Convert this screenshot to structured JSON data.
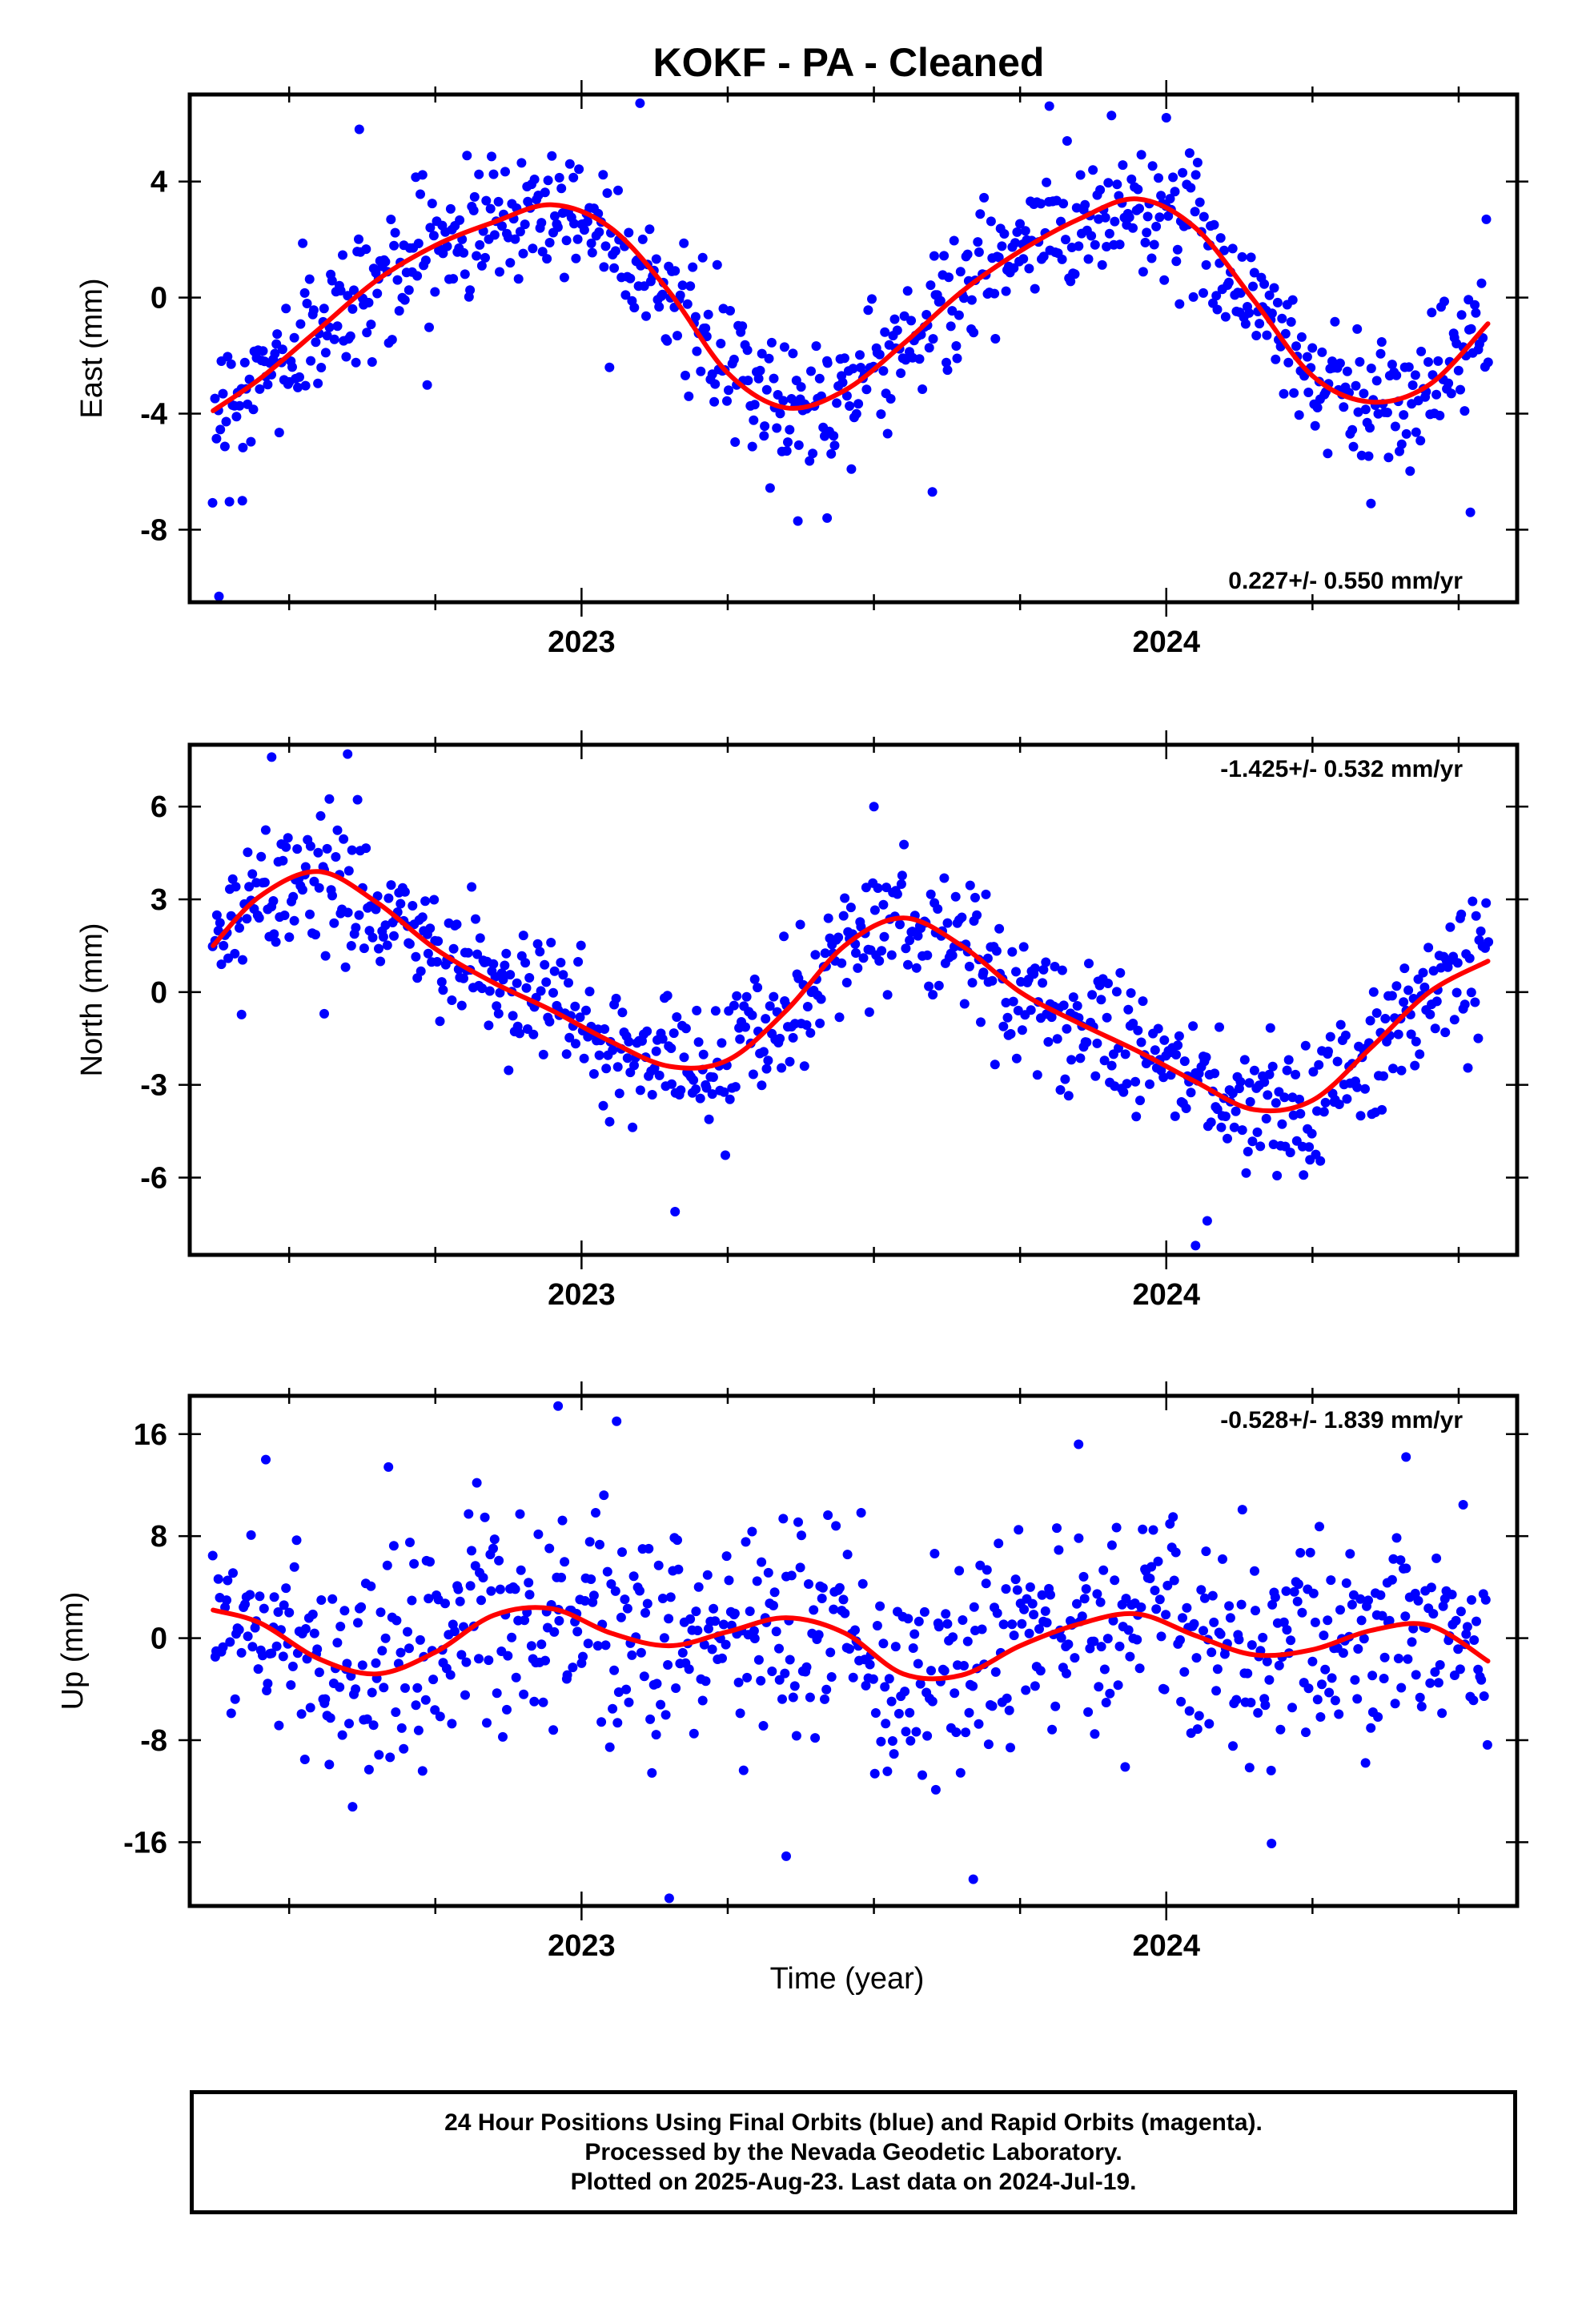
{
  "title": "KOKF  - PA - Cleaned",
  "xlabel": "Time (year)",
  "footer": {
    "line1": "24 Hour Positions Using Final Orbits (blue) and Rapid Orbits (magenta).",
    "line2": "Processed by the Nevada Geodetic Laboratory.",
    "line3": "Plotted on 2025-Aug-23. Last data on 2024-Jul-19."
  },
  "colors": {
    "final_orbits": "#0000ff",
    "rapid_orbits": "#ff00ff",
    "model": "#ff0000"
  },
  "chart_data": [
    {
      "type": "scatter",
      "ylabel": "East (mm)",
      "rate": "0.227+/- 0.550 mm/yr",
      "rate_position": "bottom-right",
      "xlim": [
        2022.33,
        2024.6
      ],
      "ylim": [
        -10.5,
        7.0
      ],
      "xticks": [
        2023,
        2024
      ],
      "xtick_labels": [
        "2023",
        "2024"
      ],
      "yticks": [
        4,
        0,
        -4,
        -8
      ],
      "ytick_labels": [
        "4",
        "0",
        "-4",
        "-8"
      ],
      "model": {
        "label": "red curve",
        "x": [
          2022.37,
          2022.45,
          2022.55,
          2022.65,
          2022.75,
          2022.85,
          2022.95,
          2023.05,
          2023.15,
          2023.25,
          2023.35,
          2023.45,
          2023.55,
          2023.65,
          2023.75,
          2023.85,
          2023.95,
          2024.05,
          2024.15,
          2024.25,
          2024.35,
          2024.45,
          2024.55
        ],
        "y": [
          -3.9,
          -2.8,
          -1.1,
          0.6,
          1.8,
          2.6,
          3.2,
          2.4,
          0.2,
          -2.6,
          -3.8,
          -3.2,
          -1.6,
          0.2,
          1.6,
          2.7,
          3.4,
          2.4,
          -0.1,
          -2.7,
          -3.6,
          -3.0,
          -0.9
        ]
      },
      "points": {
        "series": "Final Orbits",
        "x_start": 2022.37,
        "x_end": 2024.55,
        "count": 770,
        "residual_std": 1.15,
        "outliers": [
          [
            2022.42,
            -7.0
          ],
          [
            2022.38,
            -10.3
          ],
          [
            2022.62,
            5.8
          ],
          [
            2023.1,
            6.7
          ],
          [
            2023.37,
            -7.7
          ],
          [
            2023.42,
            -7.6
          ],
          [
            2023.6,
            -6.7
          ],
          [
            2023.8,
            6.6
          ],
          [
            2024.0,
            6.2
          ],
          [
            2024.35,
            -7.1
          ],
          [
            2024.52,
            -7.4
          ]
        ]
      }
    },
    {
      "type": "scatter",
      "ylabel": "North (mm)",
      "rate": "-1.425+/- 0.532 mm/yr",
      "rate_position": "top-right",
      "xlim": [
        2022.33,
        2024.6
      ],
      "ylim": [
        -8.5,
        8.0
      ],
      "xticks": [
        2023,
        2024
      ],
      "xtick_labels": [
        "2023",
        "2024"
      ],
      "yticks": [
        6,
        3,
        0,
        -3,
        -6
      ],
      "ytick_labels": [
        "6",
        "3",
        "0",
        "-3",
        "-6"
      ],
      "model": {
        "label": "red curve",
        "x": [
          2022.37,
          2022.45,
          2022.55,
          2022.65,
          2022.75,
          2022.85,
          2022.95,
          2023.05,
          2023.15,
          2023.25,
          2023.35,
          2023.45,
          2023.55,
          2023.65,
          2023.75,
          2023.85,
          2023.95,
          2024.05,
          2024.15,
          2024.25,
          2024.35,
          2024.45,
          2024.55
        ],
        "y": [
          1.5,
          3.1,
          3.9,
          2.9,
          1.4,
          0.3,
          -0.6,
          -1.6,
          -2.4,
          -2.2,
          -0.6,
          1.5,
          2.4,
          1.5,
          0.0,
          -1.0,
          -1.9,
          -2.9,
          -3.8,
          -3.5,
          -1.8,
          0.0,
          1.0
        ]
      },
      "points": {
        "series": "Final Orbits",
        "x_start": 2022.37,
        "x_end": 2024.55,
        "count": 770,
        "residual_std": 1.05,
        "outliers": [
          [
            2022.47,
            7.6
          ],
          [
            2022.6,
            7.7
          ],
          [
            2023.16,
            -7.1
          ],
          [
            2023.5,
            6.0
          ],
          [
            2024.05,
            -8.2
          ],
          [
            2024.07,
            -7.4
          ],
          [
            2022.56,
            -0.7
          ]
        ]
      }
    },
    {
      "type": "scatter",
      "ylabel": "Up (mm)",
      "rate": "-0.528+/- 1.839 mm/yr",
      "rate_position": "top-right",
      "xlim": [
        2022.33,
        2024.6
      ],
      "ylim": [
        -21.0,
        19.0
      ],
      "xticks": [
        2023,
        2024
      ],
      "xtick_labels": [
        "2023",
        "2024"
      ],
      "yticks": [
        16,
        8,
        0,
        -8,
        -16
      ],
      "ytick_labels": [
        "16",
        "8",
        "0",
        "-8",
        "-16"
      ],
      "model": {
        "label": "red curve",
        "x": [
          2022.37,
          2022.45,
          2022.55,
          2022.65,
          2022.75,
          2022.85,
          2022.95,
          2023.05,
          2023.15,
          2023.25,
          2023.35,
          2023.45,
          2023.55,
          2023.65,
          2023.75,
          2023.85,
          2023.95,
          2024.05,
          2024.15,
          2024.25,
          2024.35,
          2024.45,
          2024.55
        ],
        "y": [
          2.2,
          1.2,
          -1.6,
          -2.8,
          -1.1,
          1.8,
          2.3,
          0.4,
          -0.6,
          0.5,
          1.6,
          0.4,
          -2.8,
          -2.9,
          -0.6,
          1.1,
          1.9,
          0.2,
          -1.3,
          -0.9,
          0.6,
          1.0,
          -1.8
        ]
      },
      "points": {
        "series": "Final Orbits",
        "x_start": 2022.37,
        "x_end": 2024.55,
        "count": 770,
        "residual_std": 4.3,
        "outliers": [
          [
            2022.96,
            18.2
          ],
          [
            2023.06,
            17.0
          ],
          [
            2023.15,
            -20.4
          ],
          [
            2023.35,
            -17.1
          ],
          [
            2023.67,
            -18.9
          ],
          [
            2023.85,
            15.2
          ],
          [
            2024.18,
            -16.1
          ],
          [
            2024.41,
            14.2
          ],
          [
            2022.46,
            14.0
          ]
        ]
      }
    }
  ]
}
